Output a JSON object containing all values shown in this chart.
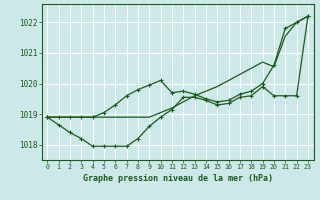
{
  "xlabel": "Graphe pression niveau de la mer (hPa)",
  "bg_color": "#cce8e8",
  "grid_color": "#ffffff",
  "line_color": "#1a5c1a",
  "x_ticks": [
    0,
    1,
    2,
    3,
    4,
    5,
    6,
    7,
    8,
    9,
    10,
    11,
    12,
    13,
    14,
    15,
    16,
    17,
    18,
    19,
    20,
    21,
    22,
    23
  ],
  "y_ticks": [
    1018,
    1019,
    1020,
    1021,
    1022
  ],
  "ylim": [
    1017.5,
    1022.6
  ],
  "xlim": [
    -0.5,
    23.5
  ],
  "hours": [
    0,
    1,
    2,
    3,
    4,
    5,
    6,
    7,
    8,
    9,
    10,
    11,
    12,
    13,
    14,
    15,
    16,
    17,
    18,
    19,
    20,
    21,
    22,
    23
  ],
  "line_straight": [
    1018.9,
    1018.9,
    1018.9,
    1018.9,
    1018.9,
    1018.9,
    1018.9,
    1018.9,
    1018.9,
    1018.9,
    1019.05,
    1019.2,
    1019.4,
    1019.6,
    1019.75,
    1019.9,
    1020.1,
    1020.3,
    1020.5,
    1020.7,
    1020.55,
    1021.55,
    1022.0,
    1022.2
  ],
  "line_dip": [
    1018.9,
    1018.65,
    1018.4,
    1018.2,
    1017.95,
    1017.95,
    1017.95,
    1017.95,
    1018.2,
    1018.6,
    1018.9,
    1019.15,
    1019.55,
    1019.55,
    1019.45,
    1019.3,
    1019.35,
    1019.55,
    1019.6,
    1019.9,
    1019.6,
    1019.6,
    1019.6,
    1022.2
  ],
  "line_upper": [
    1018.9,
    1018.9,
    1018.9,
    1018.9,
    1018.9,
    1019.05,
    1019.3,
    1019.6,
    1019.8,
    1019.95,
    1020.1,
    1019.7,
    1019.75,
    1019.65,
    1019.5,
    1019.4,
    1019.45,
    1019.65,
    1019.75,
    1020.0,
    1020.6,
    1021.8,
    1022.0,
    1022.2
  ]
}
